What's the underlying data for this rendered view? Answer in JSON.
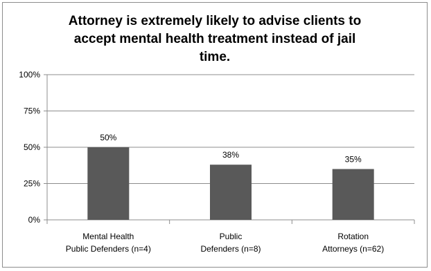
{
  "chart_data": {
    "type": "bar",
    "title": "Attorney is extremely likely to advise clients to accept mental health  treatment instead of jail time.",
    "title_lines": [
      "Attorney is extremely likely to advise clients to",
      "accept mental health  treatment instead of jail",
      "time."
    ],
    "categories": [
      [
        "Mental Health",
        "Public Defenders (n=4)"
      ],
      [
        "Public",
        "Defenders (n=8)"
      ],
      [
        "Rotation",
        "Attorneys (n=62)"
      ]
    ],
    "values": [
      50,
      38,
      35
    ],
    "data_labels": [
      "50%",
      "38%",
      "35%"
    ],
    "ylim": [
      0,
      100
    ],
    "y_ticks": [
      0,
      25,
      50,
      75,
      100
    ],
    "y_tick_labels": [
      "0%",
      "25%",
      "50%",
      "75%",
      "100%"
    ],
    "grid": true,
    "bar_color": "#595959",
    "grid_color": "#8c8c8c"
  }
}
